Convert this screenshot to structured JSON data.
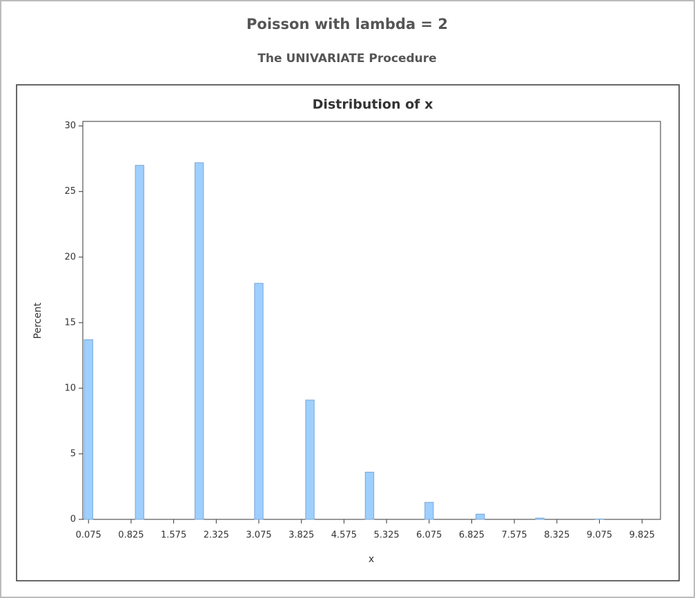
{
  "page_title": "Poisson with lambda = 2",
  "page_subtitle": "The UNIVARIATE Procedure",
  "chart_data": {
    "type": "histogram",
    "title": "Distribution of x",
    "xlabel": "x",
    "ylabel": "Percent",
    "color": "#9ecfff",
    "edge_color": "#7aa7d6",
    "bins": [
      0,
      0.15,
      0.3,
      0.45,
      0.6,
      0.75,
      0.9,
      1.05,
      1.2,
      1.35,
      1.5,
      1.65,
      1.8,
      1.95,
      2.1,
      2.25,
      2.4,
      2.55,
      2.7,
      2.85,
      3,
      3.15,
      3.3,
      3.45,
      3.6,
      3.75,
      3.9,
      4.05,
      4.2,
      4.35,
      4.5,
      4.65,
      4.8,
      4.95,
      5.1,
      5.25,
      5.4,
      5.55,
      5.7,
      5.85,
      6,
      6.15,
      6.3,
      6.45,
      6.6,
      6.75,
      6.9,
      7.05,
      7.2,
      7.35,
      7.5,
      7.65,
      7.8,
      7.95,
      8.1,
      8.25,
      8.4,
      8.55,
      8.7,
      8.85,
      9,
      9.15,
      9.3,
      9.45,
      9.6,
      9.75,
      9.9
    ],
    "values": [
      13.7,
      0,
      0,
      0,
      0,
      0,
      27.0,
      0,
      0,
      0,
      0,
      0,
      0,
      27.2,
      0,
      0,
      0,
      0,
      0,
      0,
      18.0,
      0,
      0,
      0,
      0,
      0,
      9.1,
      0,
      0,
      0,
      0,
      0,
      0,
      3.6,
      0,
      0,
      0,
      0,
      0,
      0,
      1.3,
      0,
      0,
      0,
      0,
      0,
      0.4,
      0,
      0,
      0,
      0,
      0,
      0,
      0.1,
      0,
      0,
      0,
      0,
      0,
      0,
      0.03,
      0,
      0,
      0,
      0,
      0
    ],
    "xlim": [
      -0.025,
      10.15
    ],
    "ylim": [
      0,
      30.35
    ],
    "xticks": [
      0.075,
      0.825,
      1.575,
      2.325,
      3.075,
      3.825,
      4.575,
      5.325,
      6.075,
      6.825,
      7.575,
      8.325,
      9.075,
      9.825
    ],
    "yticks": [
      0,
      5,
      10,
      15,
      20,
      25,
      30
    ]
  }
}
